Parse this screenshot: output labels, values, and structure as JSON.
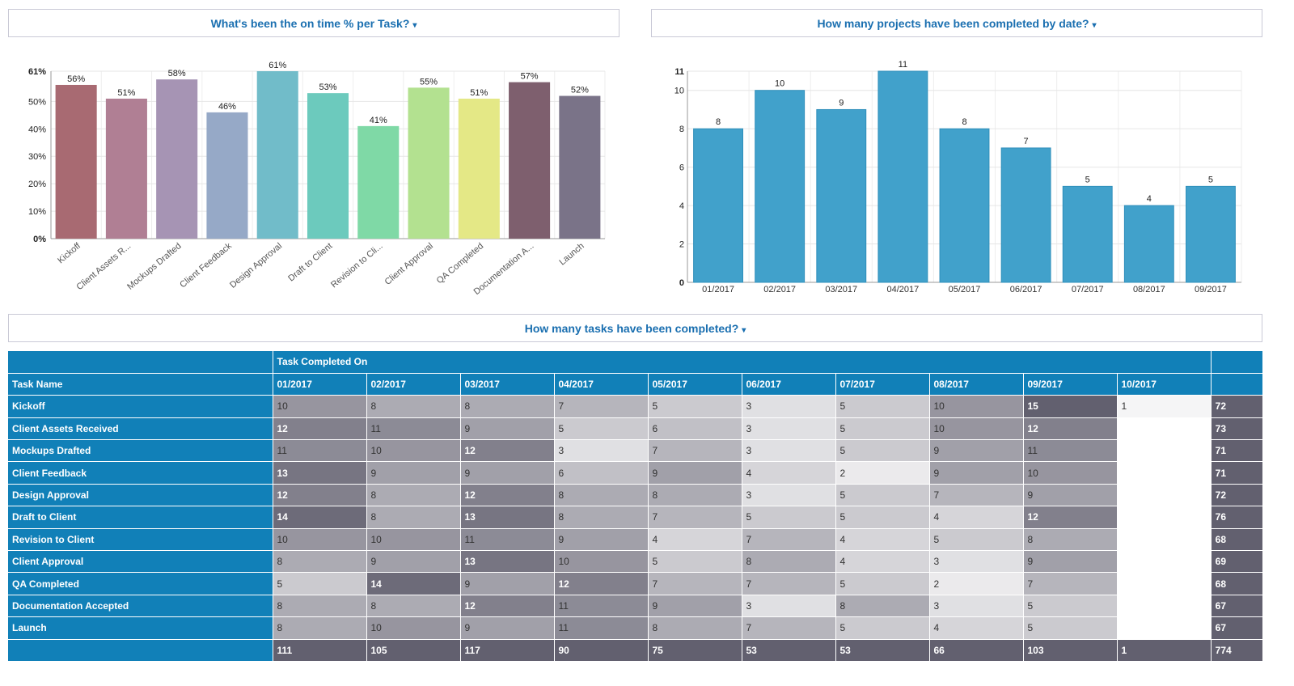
{
  "panels": {
    "left_title": "What's been the on time % per Task?",
    "right_title": "How many projects have been completed by date?",
    "table_title": "How many tasks have been completed?",
    "caret": "▾"
  },
  "chart_data": [
    {
      "type": "bar",
      "categories": [
        "Kickoff",
        "Client Assets R...",
        "Mockups Drafted",
        "Client Feedback",
        "Design Approval",
        "Draft to Client",
        "Revision to Cli...",
        "Client Approval",
        "QA Completed",
        "Documentation A...",
        "Launch"
      ],
      "values": [
        56,
        51,
        58,
        46,
        61,
        53,
        41,
        55,
        51,
        57,
        52
      ],
      "value_labels": [
        "56%",
        "51%",
        "58%",
        "46%",
        "61%",
        "53%",
        "41%",
        "55%",
        "51%",
        "57%",
        "52%"
      ],
      "colors": [
        "#a86a72",
        "#b07f94",
        "#a694b4",
        "#96a9c7",
        "#71bcc9",
        "#6ccabd",
        "#7fd9a6",
        "#b3e190",
        "#e4e886",
        "#7e5f6e",
        "#7a7388"
      ],
      "ylim": [
        0,
        61
      ],
      "yticks": [
        0,
        10,
        20,
        30,
        40,
        50,
        61
      ],
      "ytick_labels": [
        "0%",
        "10%",
        "20%",
        "30%",
        "40%",
        "50%",
        "61%"
      ],
      "title": "",
      "xlabel": "",
      "ylabel": "",
      "grid": true
    },
    {
      "type": "bar",
      "categories": [
        "01/2017",
        "02/2017",
        "03/2017",
        "04/2017",
        "05/2017",
        "06/2017",
        "07/2017",
        "08/2017",
        "09/2017"
      ],
      "values": [
        8,
        10,
        9,
        11,
        8,
        7,
        5,
        4,
        5
      ],
      "color": "#41a1cb",
      "ylim": [
        0,
        11
      ],
      "yticks": [
        0,
        2,
        4,
        6,
        8,
        10,
        11
      ],
      "title": "",
      "xlabel": "",
      "ylabel": "",
      "grid": true
    },
    {
      "type": "table",
      "group_header": "Task Completed On",
      "row_header": "Task Name",
      "columns": [
        "01/2017",
        "02/2017",
        "03/2017",
        "04/2017",
        "05/2017",
        "06/2017",
        "07/2017",
        "08/2017",
        "09/2017",
        "10/2017"
      ],
      "rows": [
        {
          "name": "Kickoff",
          "values": [
            10,
            8,
            8,
            7,
            5,
            3,
            5,
            10,
            15,
            1
          ],
          "total": 72
        },
        {
          "name": "Client Assets Received",
          "values": [
            12,
            11,
            9,
            5,
            6,
            3,
            5,
            10,
            12,
            null
          ],
          "total": 73
        },
        {
          "name": "Mockups Drafted",
          "values": [
            11,
            10,
            12,
            3,
            7,
            3,
            5,
            9,
            11,
            null
          ],
          "total": 71
        },
        {
          "name": "Client Feedback",
          "values": [
            13,
            9,
            9,
            6,
            9,
            4,
            2,
            9,
            10,
            null
          ],
          "total": 71
        },
        {
          "name": "Design Approval",
          "values": [
            12,
            8,
            12,
            8,
            8,
            3,
            5,
            7,
            9,
            null
          ],
          "total": 72
        },
        {
          "name": "Draft to Client",
          "values": [
            14,
            8,
            13,
            8,
            7,
            5,
            5,
            4,
            12,
            null
          ],
          "total": 76
        },
        {
          "name": "Revision to Client",
          "values": [
            10,
            10,
            11,
            9,
            4,
            7,
            4,
            5,
            8,
            null
          ],
          "total": 68
        },
        {
          "name": "Client Approval",
          "values": [
            8,
            9,
            13,
            10,
            5,
            8,
            4,
            3,
            9,
            null
          ],
          "total": 69
        },
        {
          "name": "QA Completed",
          "values": [
            5,
            14,
            9,
            12,
            7,
            7,
            5,
            2,
            7,
            null
          ],
          "total": 68
        },
        {
          "name": "Documentation Accepted",
          "values": [
            8,
            8,
            12,
            11,
            9,
            3,
            8,
            3,
            5,
            null
          ],
          "total": 67
        },
        {
          "name": "Launch",
          "values": [
            8,
            10,
            9,
            11,
            8,
            7,
            5,
            4,
            5,
            null
          ],
          "total": 67
        }
      ],
      "column_totals": [
        111,
        105,
        117,
        90,
        75,
        53,
        53,
        66,
        103,
        1
      ],
      "grand_total": 774
    }
  ]
}
